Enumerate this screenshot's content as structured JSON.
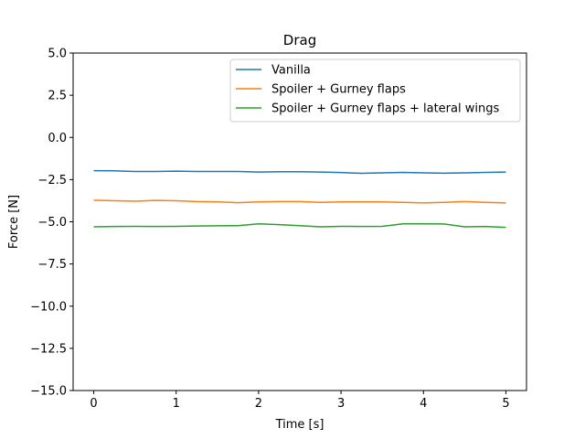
{
  "chart_data": {
    "type": "line",
    "title": "Drag",
    "xlabel": "Time [s]",
    "ylabel": "Force [N]",
    "xlim": [
      -0.25,
      5.25
    ],
    "ylim": [
      -15.0,
      5.0
    ],
    "xticks": [
      0,
      1,
      2,
      3,
      4,
      5
    ],
    "xtick_labels": [
      "0",
      "1",
      "2",
      "3",
      "4",
      "5"
    ],
    "yticks": [
      5.0,
      2.5,
      0.0,
      -2.5,
      -5.0,
      -7.5,
      -10.0,
      -12.5,
      -15.0
    ],
    "ytick_labels": [
      "5.0",
      "2.5",
      "0.0",
      "−2.5",
      "−5.0",
      "−7.5",
      "−10.0",
      "−12.5",
      "−15.0"
    ],
    "grid": false,
    "legend_position": "top-right",
    "x": [
      0.0,
      0.25,
      0.5,
      0.75,
      1.0,
      1.25,
      1.5,
      1.75,
      2.0,
      2.25,
      2.5,
      2.75,
      3.0,
      3.25,
      3.5,
      3.75,
      4.0,
      4.25,
      4.5,
      4.75,
      5.0
    ],
    "series": [
      {
        "name": "Vanilla",
        "color": "#1f77b4",
        "values": [
          -1.97,
          -1.98,
          -2.02,
          -2.02,
          -2.0,
          -2.02,
          -2.02,
          -2.02,
          -2.05,
          -2.03,
          -2.03,
          -2.05,
          -2.08,
          -2.13,
          -2.1,
          -2.07,
          -2.1,
          -2.12,
          -2.1,
          -2.07,
          -2.05
        ]
      },
      {
        "name": "Spoiler + Gurney flaps",
        "color": "#ff7f0e",
        "values": [
          -3.72,
          -3.75,
          -3.78,
          -3.73,
          -3.75,
          -3.8,
          -3.82,
          -3.87,
          -3.82,
          -3.8,
          -3.8,
          -3.85,
          -3.82,
          -3.82,
          -3.82,
          -3.85,
          -3.88,
          -3.85,
          -3.8,
          -3.85,
          -3.88
        ]
      },
      {
        "name": "Spoiler + Gurney flaps + lateral wings",
        "color": "#2ca02c",
        "values": [
          -5.3,
          -5.28,
          -5.27,
          -5.28,
          -5.27,
          -5.25,
          -5.24,
          -5.23,
          -5.12,
          -5.17,
          -5.23,
          -5.3,
          -5.27,
          -5.28,
          -5.27,
          -5.12,
          -5.12,
          -5.13,
          -5.3,
          -5.28,
          -5.33
        ]
      }
    ]
  }
}
